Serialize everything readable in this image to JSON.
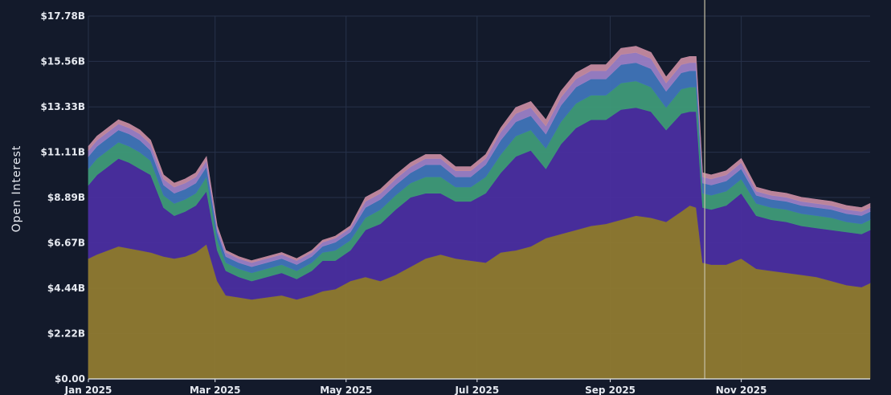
{
  "chart_data": {
    "type": "area",
    "stacked": true,
    "ylabel": "Open Interest",
    "xlabel": "",
    "title": "",
    "ylim": [
      0,
      17780000000
    ],
    "y_tick_values": [
      0,
      2220000000,
      4440000000,
      6670000000,
      8890000000,
      11110000000,
      13330000000,
      15560000000,
      17780000000
    ],
    "y_tick_labels": [
      "$0.00",
      "$2.22B",
      "$4.44B",
      "$6.67B",
      "$8.89B",
      "$11.11B",
      "$13.33B",
      "$15.56B",
      "$17.78B"
    ],
    "x_range": [
      "2025-01-01",
      "2025-12-31"
    ],
    "x_tick_values": [
      "2025-01-01",
      "2025-03-01",
      "2025-05-01",
      "2025-07-01",
      "2025-09-01",
      "2025-11-01"
    ],
    "x_tick_labels": [
      "Jan 2025",
      "Mar 2025",
      "May 2025",
      "Jul 2025",
      "Sep 2025",
      "Nov 2025"
    ],
    "grid": true,
    "legend": "none",
    "colors": {
      "background": "#131a2b",
      "grid": "#27324a",
      "text": "#e6e9f0",
      "series": [
        "#8f7a30",
        "#4a2ea0",
        "#3e9a78",
        "#3f74b8",
        "#9a80c6",
        "#c48aa0"
      ]
    },
    "x": [
      "2025-01-01",
      "2025-01-05",
      "2025-01-10",
      "2025-01-15",
      "2025-01-20",
      "2025-01-25",
      "2025-01-30",
      "2025-02-05",
      "2025-02-10",
      "2025-02-15",
      "2025-02-20",
      "2025-02-25",
      "2025-03-02",
      "2025-03-06",
      "2025-03-12",
      "2025-03-18",
      "2025-03-25",
      "2025-04-01",
      "2025-04-08",
      "2025-04-15",
      "2025-04-20",
      "2025-04-26",
      "2025-05-03",
      "2025-05-10",
      "2025-05-17",
      "2025-05-24",
      "2025-05-31",
      "2025-06-07",
      "2025-06-14",
      "2025-06-21",
      "2025-06-28",
      "2025-07-05",
      "2025-07-12",
      "2025-07-19",
      "2025-07-26",
      "2025-08-02",
      "2025-08-09",
      "2025-08-16",
      "2025-08-23",
      "2025-08-30",
      "2025-09-06",
      "2025-09-13",
      "2025-09-20",
      "2025-09-27",
      "2025-10-04",
      "2025-10-08",
      "2025-10-11",
      "2025-10-14",
      "2025-10-18",
      "2025-10-25",
      "2025-11-01",
      "2025-11-08",
      "2025-11-15",
      "2025-11-22",
      "2025-11-29",
      "2025-12-06",
      "2025-12-13",
      "2025-12-20",
      "2025-12-27",
      "2025-12-31"
    ],
    "series": [
      {
        "values": [
          5.9,
          6.1,
          6.3,
          6.5,
          6.4,
          6.3,
          6.2,
          6.0,
          5.9,
          6.0,
          6.2,
          6.6,
          4.8,
          4.1,
          4.0,
          3.9,
          4.0,
          4.1,
          3.9,
          4.1,
          4.3,
          4.4,
          4.8,
          5.0,
          4.8,
          5.1,
          5.5,
          5.9,
          6.1,
          5.9,
          5.8,
          5.7,
          6.2,
          6.3,
          6.5,
          6.9,
          7.1,
          7.3,
          7.5,
          7.6,
          7.8,
          8.0,
          7.9,
          7.7,
          8.2,
          8.5,
          8.4,
          5.7,
          5.6,
          5.6,
          5.9,
          5.4,
          5.3,
          5.2,
          5.1,
          5.0,
          4.8,
          4.6,
          4.5,
          4.7
        ]
      },
      {
        "values": [
          3.6,
          3.9,
          4.1,
          4.3,
          4.2,
          4.0,
          3.8,
          2.4,
          2.1,
          2.2,
          2.3,
          2.6,
          1.5,
          1.2,
          1.0,
          0.9,
          1.0,
          1.1,
          1.0,
          1.2,
          1.5,
          1.4,
          1.5,
          2.3,
          2.8,
          3.2,
          3.4,
          3.2,
          3.0,
          2.8,
          2.9,
          3.4,
          3.9,
          4.6,
          4.7,
          3.4,
          4.4,
          5.0,
          5.2,
          5.1,
          5.4,
          5.3,
          5.2,
          4.5,
          4.8,
          4.6,
          4.7,
          2.7,
          2.7,
          2.9,
          3.2,
          2.6,
          2.5,
          2.5,
          2.4,
          2.4,
          2.5,
          2.6,
          2.6,
          2.6
        ]
      },
      {
        "values": [
          0.8,
          0.8,
          0.8,
          0.8,
          0.8,
          0.8,
          0.7,
          0.6,
          0.6,
          0.6,
          0.6,
          0.7,
          0.5,
          0.4,
          0.4,
          0.4,
          0.4,
          0.4,
          0.4,
          0.4,
          0.4,
          0.5,
          0.5,
          0.6,
          0.7,
          0.7,
          0.7,
          0.8,
          0.8,
          0.7,
          0.7,
          0.8,
          0.9,
          1.0,
          1.0,
          1.0,
          1.1,
          1.2,
          1.2,
          1.2,
          1.3,
          1.3,
          1.2,
          1.1,
          1.2,
          1.2,
          1.2,
          0.7,
          0.7,
          0.7,
          0.7,
          0.6,
          0.6,
          0.6,
          0.6,
          0.6,
          0.6,
          0.5,
          0.5,
          0.5
        ]
      },
      {
        "values": [
          0.6,
          0.6,
          0.6,
          0.6,
          0.6,
          0.6,
          0.5,
          0.5,
          0.5,
          0.5,
          0.5,
          0.5,
          0.4,
          0.3,
          0.3,
          0.3,
          0.3,
          0.3,
          0.3,
          0.3,
          0.3,
          0.4,
          0.4,
          0.5,
          0.5,
          0.5,
          0.5,
          0.6,
          0.6,
          0.5,
          0.5,
          0.6,
          0.7,
          0.7,
          0.7,
          0.7,
          0.8,
          0.8,
          0.8,
          0.8,
          0.9,
          0.9,
          0.9,
          0.8,
          0.8,
          0.8,
          0.8,
          0.5,
          0.5,
          0.5,
          0.5,
          0.4,
          0.4,
          0.4,
          0.4,
          0.4,
          0.4,
          0.4,
          0.4,
          0.4
        ]
      },
      {
        "values": [
          0.3,
          0.3,
          0.3,
          0.3,
          0.3,
          0.3,
          0.3,
          0.3,
          0.3,
          0.3,
          0.3,
          0.3,
          0.2,
          0.2,
          0.2,
          0.2,
          0.2,
          0.2,
          0.2,
          0.2,
          0.2,
          0.2,
          0.2,
          0.3,
          0.3,
          0.3,
          0.3,
          0.3,
          0.3,
          0.3,
          0.3,
          0.3,
          0.4,
          0.4,
          0.4,
          0.4,
          0.4,
          0.4,
          0.4,
          0.4,
          0.5,
          0.5,
          0.5,
          0.4,
          0.4,
          0.4,
          0.4,
          0.3,
          0.3,
          0.3,
          0.3,
          0.2,
          0.2,
          0.2,
          0.2,
          0.2,
          0.2,
          0.2,
          0.2,
          0.2
        ]
      },
      {
        "values": [
          0.2,
          0.2,
          0.2,
          0.2,
          0.2,
          0.2,
          0.2,
          0.2,
          0.2,
          0.2,
          0.2,
          0.2,
          0.1,
          0.1,
          0.1,
          0.1,
          0.1,
          0.1,
          0.1,
          0.1,
          0.1,
          0.1,
          0.1,
          0.2,
          0.2,
          0.2,
          0.2,
          0.2,
          0.2,
          0.2,
          0.2,
          0.2,
          0.2,
          0.3,
          0.3,
          0.3,
          0.3,
          0.3,
          0.3,
          0.3,
          0.3,
          0.3,
          0.3,
          0.3,
          0.3,
          0.3,
          0.3,
          0.2,
          0.2,
          0.2,
          0.2,
          0.2,
          0.2,
          0.2,
          0.2,
          0.2,
          0.2,
          0.2,
          0.2,
          0.2
        ]
      }
    ],
    "value_unit": "billion USD",
    "vertical_marker": "2025-10-15"
  }
}
